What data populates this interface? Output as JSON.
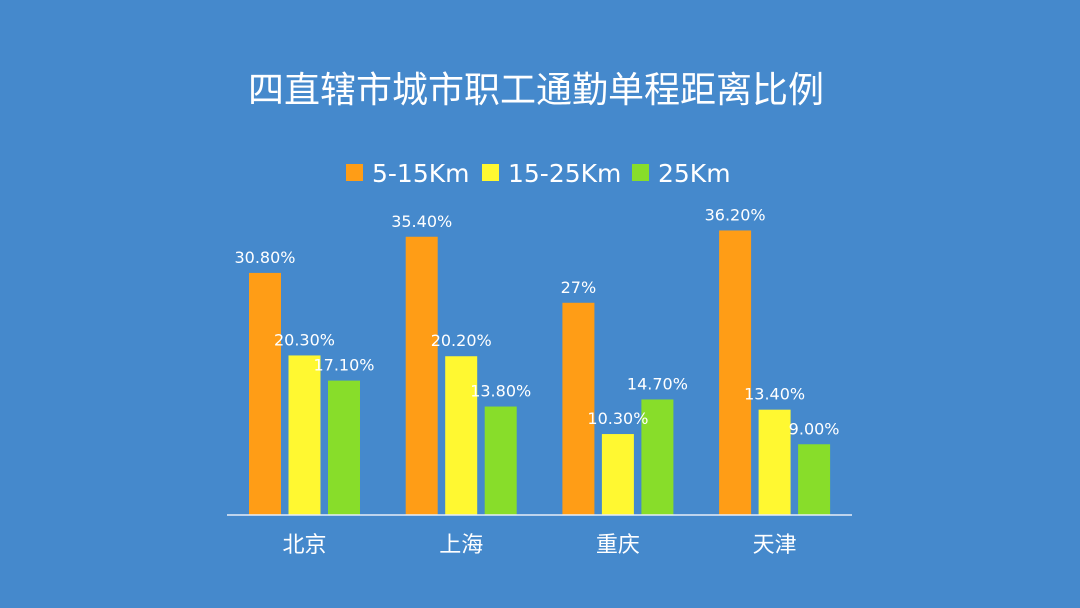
{
  "chart_data": {
    "type": "bar",
    "title": "四直辖市城市职工通勤单程距离比例",
    "categories": [
      "北京",
      "上海",
      "重庆",
      "天津"
    ],
    "series": [
      {
        "name": "5-15Km",
        "color": "#ff9d16",
        "values": [
          30.8,
          35.4,
          27,
          36.2
        ],
        "labels": [
          "30.80%",
          "35.40%",
          "27%",
          "36.20%"
        ]
      },
      {
        "name": "15-25Km",
        "color": "#fff831",
        "values": [
          20.3,
          20.2,
          10.3,
          13.4
        ],
        "labels": [
          "20.30%",
          "20.20%",
          "10.30%",
          "13.40%"
        ]
      },
      {
        "name": "25Km",
        "color": "#88dd2a",
        "values": [
          17.1,
          13.8,
          14.7,
          9.0
        ],
        "labels": [
          "17.10%",
          "13.80%",
          "14.70%",
          "9.00%"
        ]
      }
    ],
    "ylim": [
      0,
      40
    ],
    "grid": false,
    "legend_position": "top"
  }
}
